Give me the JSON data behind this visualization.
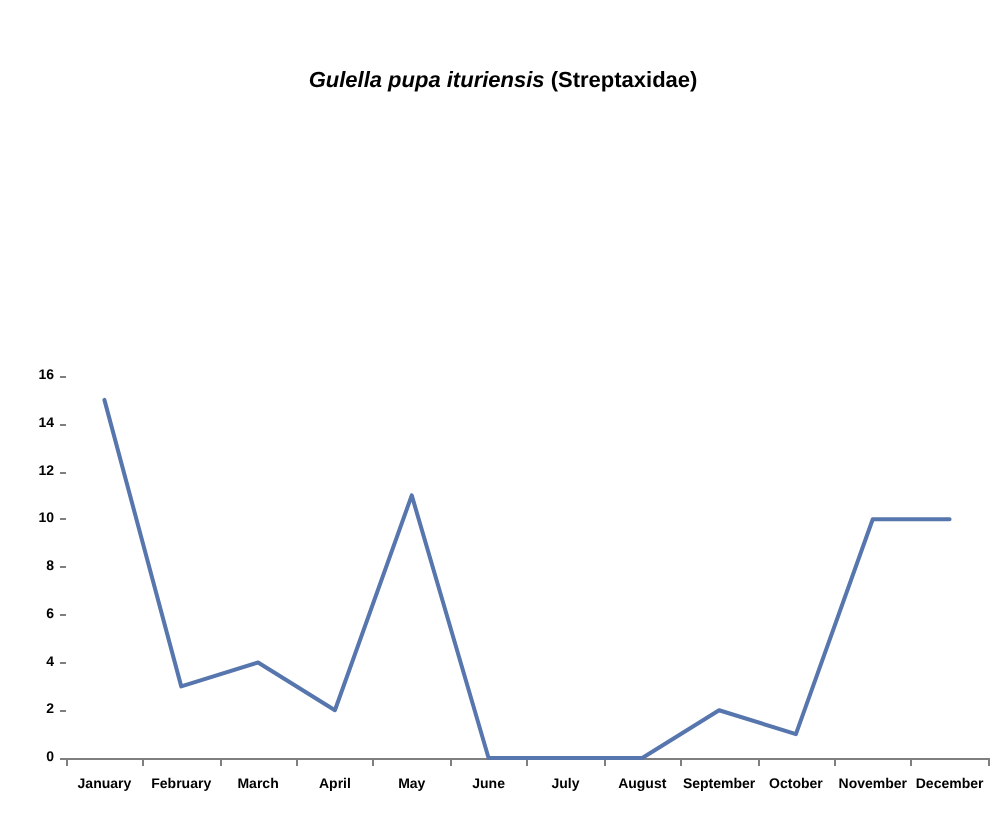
{
  "chart_data": {
    "type": "line",
    "title": "Gulella pupa ituriensis (Streptaxidae)",
    "categories": [
      "January",
      "February",
      "March",
      "April",
      "May",
      "June",
      "July",
      "August",
      "September",
      "October",
      "November",
      "December"
    ],
    "values": [
      15,
      3,
      4,
      2,
      11,
      0,
      0,
      0,
      2,
      1,
      10,
      10
    ],
    "color": "#5676ad",
    "marker": "none",
    "ylim": [
      0,
      16
    ],
    "yticks": [
      0,
      2,
      4,
      6,
      8,
      10,
      12,
      14,
      16
    ]
  }
}
